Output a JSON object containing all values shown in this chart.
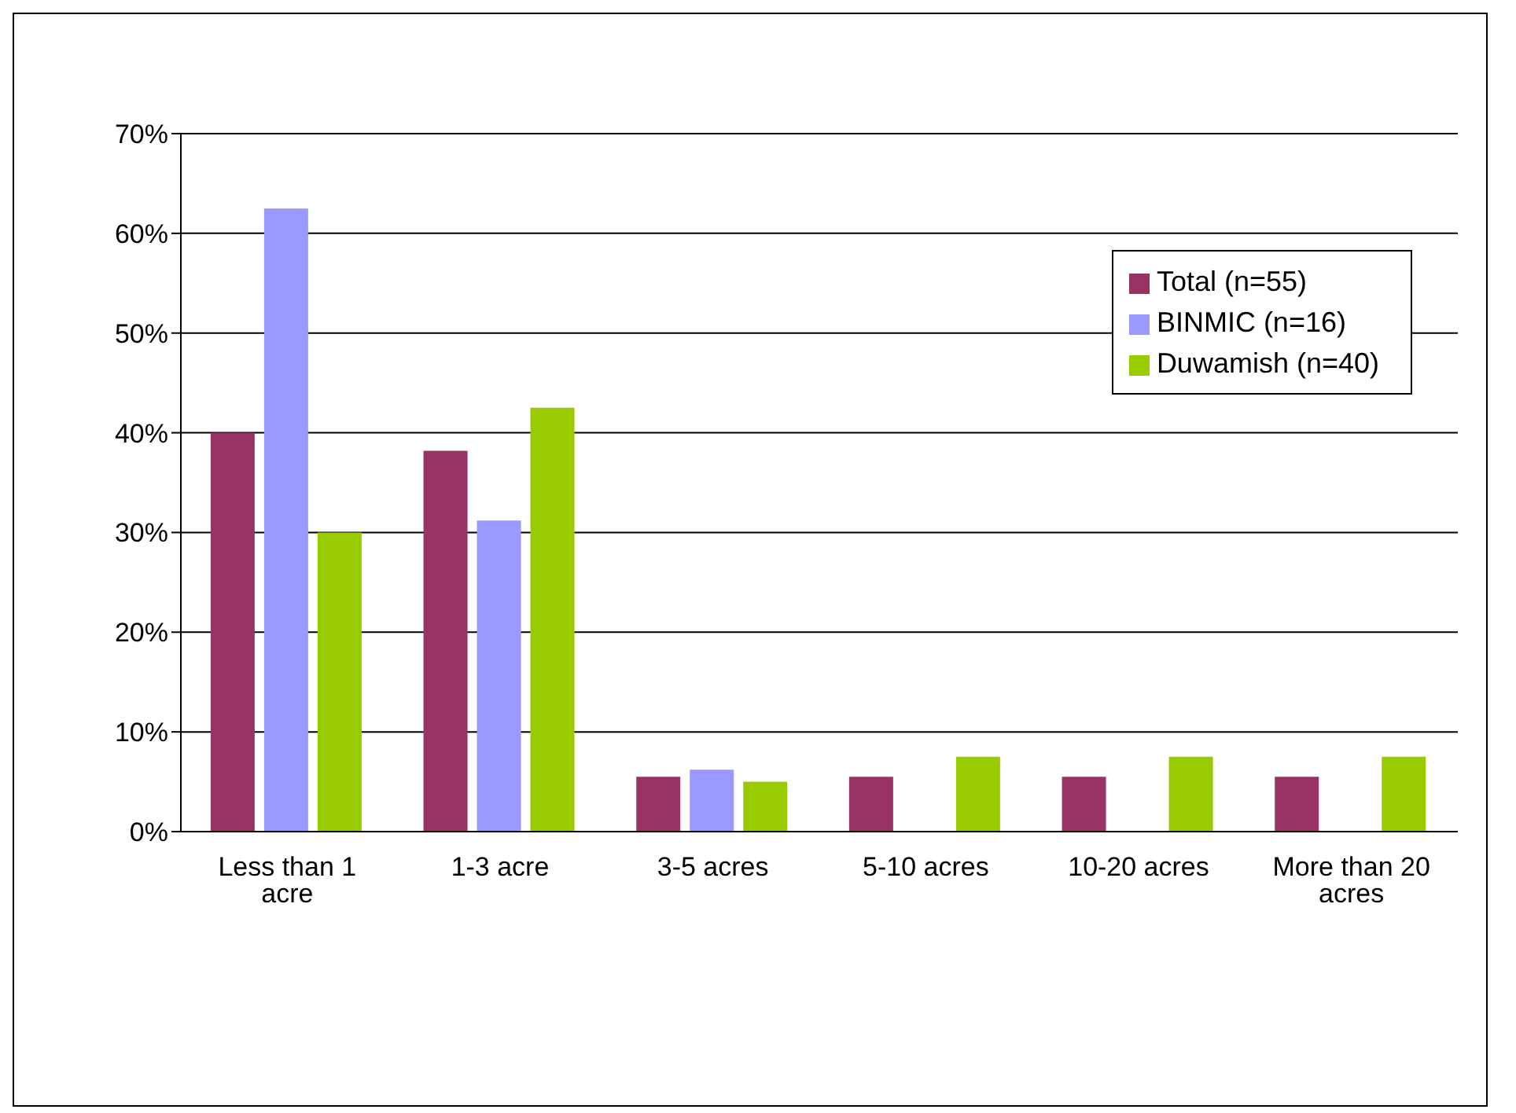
{
  "chart_data": {
    "type": "bar",
    "categories": [
      "Less than 1 acre",
      "1-3 acre",
      "3-5 acres",
      "5-10 acres",
      "10-20 acres",
      "More than 20 acres"
    ],
    "series": [
      {
        "name": "Total (n=55)",
        "color": "#993366",
        "values": [
          40,
          38.2,
          5.5,
          5.5,
          5.5,
          5.5
        ]
      },
      {
        "name": "BINMIC (n=16)",
        "color": "#9999ff",
        "values": [
          62.5,
          31.2,
          6.2,
          0,
          0,
          0
        ]
      },
      {
        "name": "Duwamish (n=40)",
        "color": "#99cc00",
        "values": [
          30,
          42.5,
          5,
          7.5,
          7.5,
          7.5
        ]
      }
    ],
    "ylim": [
      0,
      70
    ],
    "yticks": [
      {
        "value": 0,
        "label": "0%"
      },
      {
        "value": 10,
        "label": "10%"
      },
      {
        "value": 20,
        "label": "20%"
      },
      {
        "value": 30,
        "label": "30%"
      },
      {
        "value": 40,
        "label": "40%"
      },
      {
        "value": 50,
        "label": "50%"
      },
      {
        "value": 60,
        "label": "60%"
      },
      {
        "value": 70,
        "label": "70%"
      }
    ],
    "grid": "y",
    "legend": "top right"
  }
}
